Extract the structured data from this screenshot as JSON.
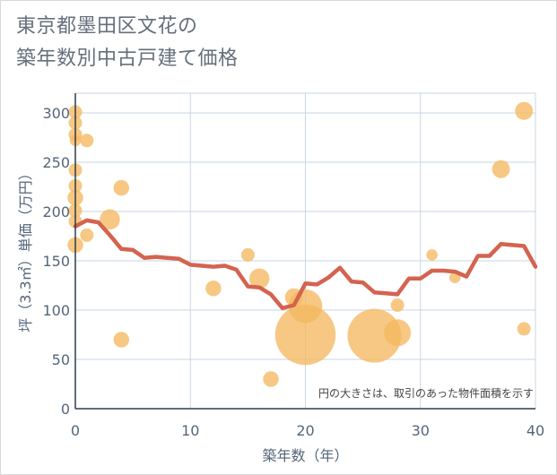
{
  "title_lines": [
    "東京都墨田区文花の",
    "築年数別中古戸建て価格"
  ],
  "chart_data": {
    "type": "scatter+line",
    "title": "東京都墨田区文花の築年数別中古戸建て価格",
    "xlabel": "築年数（年）",
    "ylabel": "坪（3.3㎡）単価（万円）",
    "xlim": [
      0,
      40
    ],
    "ylim": [
      0,
      320
    ],
    "xticks": [
      0,
      10,
      20,
      30,
      40
    ],
    "yticks": [
      0,
      50,
      100,
      150,
      200,
      250,
      300
    ],
    "grid": true,
    "annotation": "円の大きさは、取引のあった物件面積を示す",
    "colors": {
      "bubble": "#f5b860",
      "line": "#d4634f",
      "grid": "#c9d6e3",
      "axis": "#56657a"
    },
    "bubbles": [
      {
        "x": 0,
        "y": 301,
        "size": 6
      },
      {
        "x": 0,
        "y": 290,
        "size": 6
      },
      {
        "x": 0,
        "y": 278,
        "size": 6
      },
      {
        "x": 0,
        "y": 272,
        "size": 5
      },
      {
        "x": 1,
        "y": 272,
        "size": 6
      },
      {
        "x": 0,
        "y": 242,
        "size": 6
      },
      {
        "x": 0,
        "y": 226,
        "size": 6
      },
      {
        "x": 0,
        "y": 214,
        "size": 7
      },
      {
        "x": 0,
        "y": 201,
        "size": 6
      },
      {
        "x": 0,
        "y": 190,
        "size": 6
      },
      {
        "x": 0,
        "y": 166,
        "size": 7
      },
      {
        "x": 1,
        "y": 176,
        "size": 6
      },
      {
        "x": 3,
        "y": 192,
        "size": 9
      },
      {
        "x": 4,
        "y": 224,
        "size": 7
      },
      {
        "x": 4,
        "y": 70,
        "size": 7
      },
      {
        "x": 12,
        "y": 122,
        "size": 7
      },
      {
        "x": 15,
        "y": 156,
        "size": 6
      },
      {
        "x": 16,
        "y": 132,
        "size": 9
      },
      {
        "x": 17,
        "y": 30,
        "size": 7
      },
      {
        "x": 19,
        "y": 113,
        "size": 8
      },
      {
        "x": 20,
        "y": 104,
        "size": 15
      },
      {
        "x": 20,
        "y": 75,
        "size": 27
      },
      {
        "x": 26,
        "y": 74,
        "size": 24
      },
      {
        "x": 28,
        "y": 77,
        "size": 12
      },
      {
        "x": 28,
        "y": 105,
        "size": 6
      },
      {
        "x": 31,
        "y": 156,
        "size": 5
      },
      {
        "x": 33,
        "y": 133,
        "size": 5
      },
      {
        "x": 37,
        "y": 243,
        "size": 8
      },
      {
        "x": 39,
        "y": 302,
        "size": 8
      },
      {
        "x": 39,
        "y": 81,
        "size": 6
      }
    ],
    "line": {
      "x": [
        0,
        1,
        2,
        3,
        4,
        5,
        6,
        7,
        8,
        9,
        10,
        11,
        12,
        13,
        14,
        15,
        16,
        17,
        18,
        19,
        20,
        21,
        22,
        23,
        24,
        25,
        26,
        27,
        28,
        29,
        30,
        31,
        32,
        33,
        34,
        35,
        36,
        37,
        38,
        39,
        40
      ],
      "y": [
        185,
        191,
        189,
        176,
        162,
        161,
        153,
        154,
        153,
        152,
        146,
        145,
        144,
        145,
        141,
        124,
        123,
        116,
        102,
        105,
        127,
        126,
        133,
        143,
        129,
        128,
        118,
        117,
        116,
        132,
        132,
        140,
        140,
        139,
        134,
        155,
        155,
        167,
        166,
        165,
        144
      ]
    }
  }
}
